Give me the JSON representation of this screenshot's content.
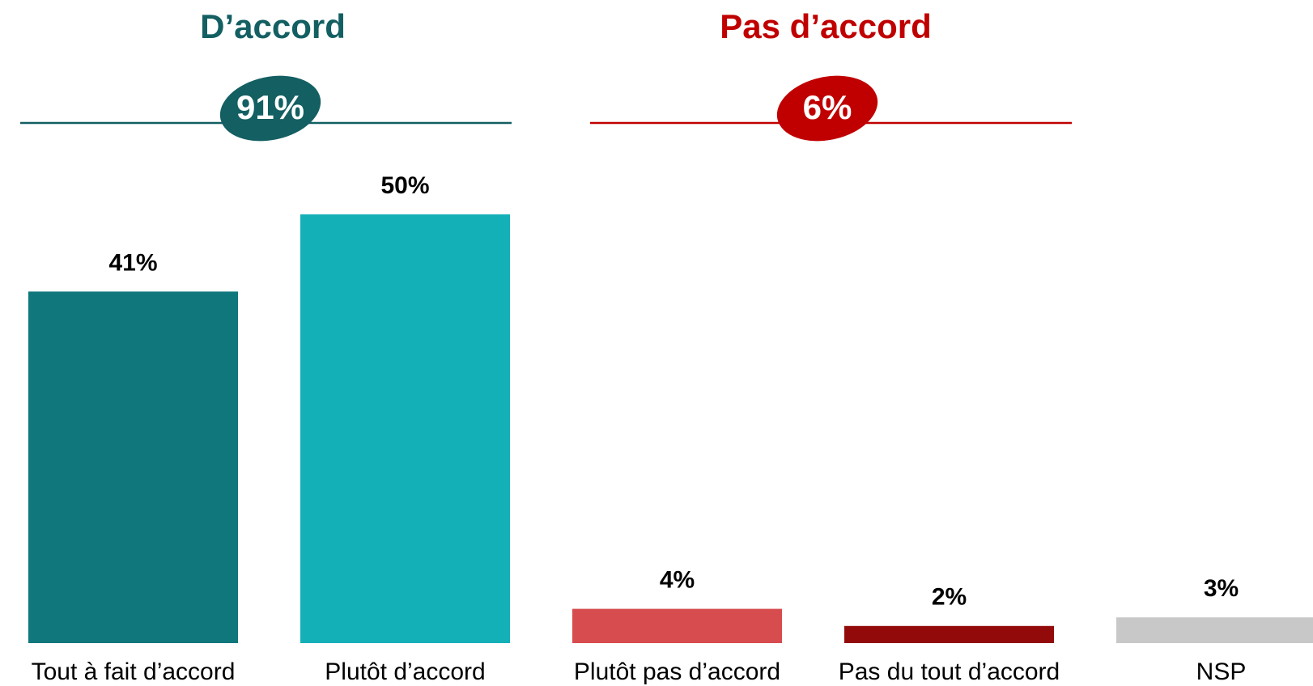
{
  "chart_data": {
    "type": "bar",
    "categories": [
      "Tout à fait d’accord",
      "Plutôt d’accord",
      "Plutôt pas d’accord",
      "Pas du tout d’accord",
      "NSP"
    ],
    "values": [
      41,
      50,
      4,
      2,
      3
    ],
    "value_labels": [
      "41%",
      "50%",
      "4%",
      "2%",
      "3%"
    ],
    "colors": [
      "#10777d",
      "#14b0b8",
      "#d64c4f",
      "#930a0a",
      "#c8c8c8"
    ],
    "ylim": [
      0,
      50
    ],
    "groups": [
      {
        "name": "D’accord",
        "total": 91,
        "total_label": "91%",
        "color": "#135f62"
      },
      {
        "name": "Pas d’accord",
        "total": 6,
        "total_label": "6%",
        "color": "#c00000"
      }
    ]
  }
}
